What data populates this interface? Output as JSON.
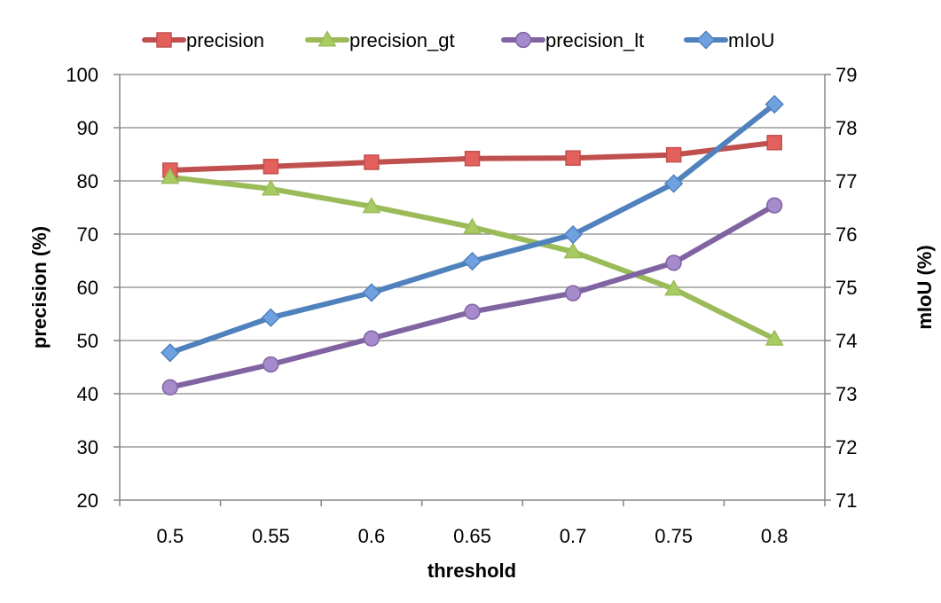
{
  "chart_data": {
    "type": "line",
    "title": "",
    "xlabel": "threshold",
    "ylabel": "precision (%)",
    "y2label": "mIoU (%)",
    "categories": [
      "0.5",
      "0.55",
      "0.6",
      "0.65",
      "0.7",
      "0.75",
      "0.8"
    ],
    "ylim": [
      20,
      100
    ],
    "yticks": [
      20,
      30,
      40,
      50,
      60,
      70,
      80,
      90,
      100
    ],
    "y2lim": [
      71,
      79
    ],
    "y2ticks": [
      71,
      72,
      73,
      74,
      75,
      76,
      77,
      78,
      79
    ],
    "grid": true,
    "legend_position": "top",
    "series": [
      {
        "name": "precision",
        "axis": "left",
        "marker": "square",
        "color": "#c0504d",
        "marker_fill": "#e4605c",
        "values": [
          82.0,
          82.7,
          83.5,
          84.2,
          84.3,
          84.9,
          87.2
        ]
      },
      {
        "name": "precision_gt",
        "axis": "left",
        "marker": "triangle",
        "color": "#9bbb59",
        "marker_fill": "#a8cc61",
        "values": [
          80.7,
          78.5,
          75.2,
          71.3,
          66.7,
          59.7,
          50.3
        ]
      },
      {
        "name": "precision_lt",
        "axis": "left",
        "marker": "circle",
        "color": "#8064a2",
        "marker_fill": "#a58bcb",
        "values": [
          41.2,
          45.5,
          50.4,
          55.4,
          58.9,
          64.6,
          75.4
        ]
      },
      {
        "name": "mIoU",
        "axis": "right",
        "marker": "diamond",
        "color": "#4f81bd",
        "marker_fill": "#6fa0e0",
        "values": [
          73.77,
          74.43,
          74.9,
          75.49,
          75.99,
          76.95,
          78.44
        ]
      }
    ]
  }
}
